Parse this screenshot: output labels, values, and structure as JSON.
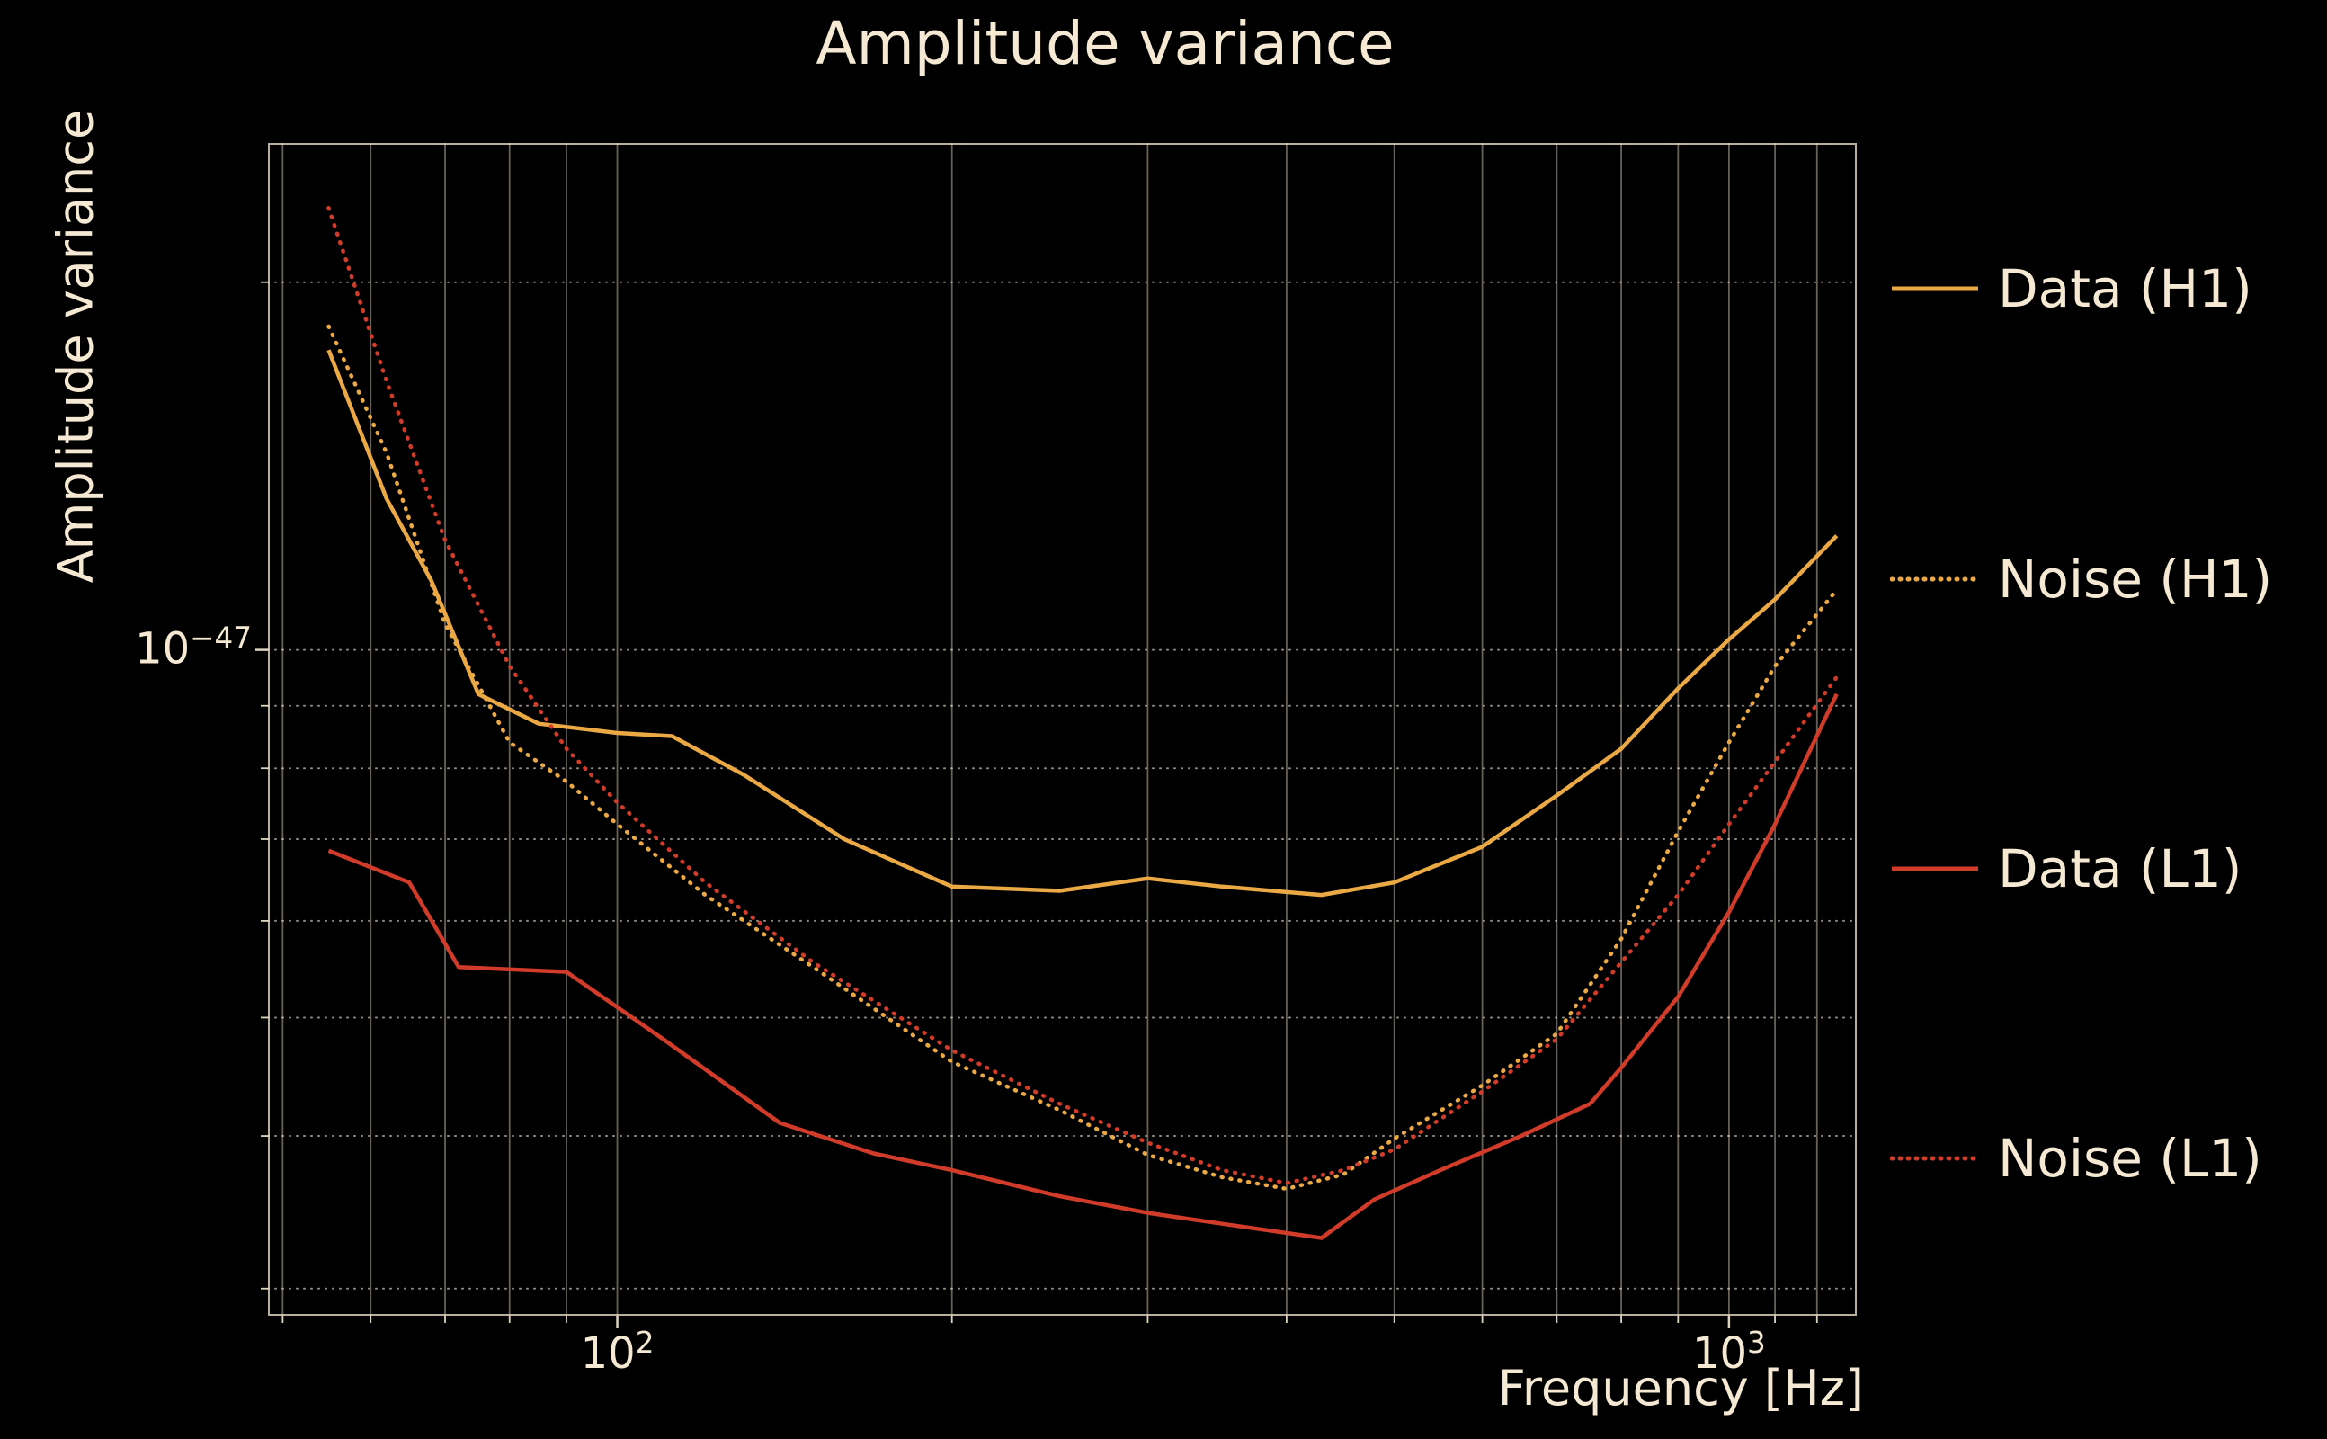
{
  "chart": {
    "title": "Amplitude variance",
    "xlabel": "Frequency [Hz]",
    "ylabel": "Amplitude variance",
    "colors": {
      "background": "#000000",
      "text": "#f5e9d3",
      "grid": "#f5e9d3",
      "gold": "#eaa945",
      "red": "#d13b2a"
    }
  },
  "chart_data": {
    "type": "line",
    "title": "Amplitude variance",
    "xlabel": "Frequency [Hz]",
    "ylabel": "Amplitude variance",
    "xscale": "log",
    "yscale": "log",
    "xlim": [
      48.5,
      1303
    ],
    "ylim": [
      2.85e-48,
      2.6e-47
    ],
    "legend_position": "right-outside",
    "grid": {
      "color": "#f5e9d3",
      "x": [
        50,
        60,
        70,
        80,
        90,
        100,
        200,
        300,
        400,
        500,
        600,
        700,
        800,
        900,
        1000,
        1100,
        1200
      ],
      "y": [
        2e-47,
        1e-47,
        9e-48,
        8e-48,
        7e-48,
        6e-48,
        5e-48,
        4e-48,
        3e-48
      ]
    },
    "xticks": [
      {
        "value": 100,
        "base": "10",
        "exp": "2"
      },
      {
        "value": 1000,
        "base": "10",
        "exp": "3"
      }
    ],
    "yticks": [
      {
        "value": 1e-47,
        "base": "10",
        "exp": "−47"
      }
    ],
    "series": [
      {
        "name": "Data (H1)",
        "color": "#eaa945",
        "style": "solid",
        "points": [
          [
            55,
            1.76e-47
          ],
          [
            62,
            1.33e-47
          ],
          [
            68,
            1.14e-47
          ],
          [
            75,
            9.2e-48
          ],
          [
            85,
            8.7e-48
          ],
          [
            100,
            8.55e-48
          ],
          [
            112,
            8.5e-48
          ],
          [
            130,
            7.9e-48
          ],
          [
            160,
            7e-48
          ],
          [
            200,
            6.4e-48
          ],
          [
            250,
            6.35e-48
          ],
          [
            300,
            6.5e-48
          ],
          [
            350,
            6.4e-48
          ],
          [
            430,
            6.3e-48
          ],
          [
            500,
            6.45e-48
          ],
          [
            600,
            6.9e-48
          ],
          [
            700,
            7.6e-48
          ],
          [
            800,
            8.3e-48
          ],
          [
            900,
            9.3e-48
          ],
          [
            1000,
            1.02e-47
          ],
          [
            1100,
            1.1e-47
          ],
          [
            1250,
            1.24e-47
          ]
        ]
      },
      {
        "name": "Noise (H1)",
        "color": "#eaa945",
        "style": "dotted",
        "points": [
          [
            55,
            1.84e-47
          ],
          [
            62,
            1.45e-47
          ],
          [
            70,
            1.05e-47
          ],
          [
            80,
            8.4e-48
          ],
          [
            90,
            7.8e-48
          ],
          [
            100,
            7.2e-48
          ],
          [
            120,
            6.3e-48
          ],
          [
            150,
            5.5e-48
          ],
          [
            200,
            4.6e-48
          ],
          [
            250,
            4.2e-48
          ],
          [
            300,
            3.86e-48
          ],
          [
            350,
            3.7e-48
          ],
          [
            400,
            3.62e-48
          ],
          [
            450,
            3.72e-48
          ],
          [
            500,
            3.98e-48
          ],
          [
            600,
            4.4e-48
          ],
          [
            700,
            4.85e-48
          ],
          [
            800,
            5.8e-48
          ],
          [
            900,
            7.1e-48
          ],
          [
            1000,
            8.4e-48
          ],
          [
            1100,
            9.7e-48
          ],
          [
            1250,
            1.12e-47
          ]
        ]
      },
      {
        "name": "Data (L1)",
        "color": "#d13b2a",
        "style": "solid",
        "points": [
          [
            55,
            6.85e-48
          ],
          [
            65,
            6.45e-48
          ],
          [
            72,
            5.5e-48
          ],
          [
            90,
            5.45e-48
          ],
          [
            110,
            4.8e-48
          ],
          [
            140,
            4.1e-48
          ],
          [
            170,
            3.87e-48
          ],
          [
            200,
            3.75e-48
          ],
          [
            250,
            3.57e-48
          ],
          [
            300,
            3.46e-48
          ],
          [
            350,
            3.39e-48
          ],
          [
            430,
            3.3e-48
          ],
          [
            480,
            3.55e-48
          ],
          [
            550,
            3.75e-48
          ],
          [
            650,
            4e-48
          ],
          [
            750,
            4.25e-48
          ],
          [
            800,
            4.55e-48
          ],
          [
            900,
            5.2e-48
          ],
          [
            1000,
            6.1e-48
          ],
          [
            1100,
            7.2e-48
          ],
          [
            1250,
            9.2e-48
          ]
        ]
      },
      {
        "name": "Noise (L1)",
        "color": "#d13b2a",
        "style": "dotted",
        "points": [
          [
            55,
            2.3e-47
          ],
          [
            62,
            1.66e-47
          ],
          [
            70,
            1.23e-47
          ],
          [
            80,
            9.7e-48
          ],
          [
            90,
            8.3e-48
          ],
          [
            100,
            7.5e-48
          ],
          [
            120,
            6.45e-48
          ],
          [
            150,
            5.55e-48
          ],
          [
            200,
            4.7e-48
          ],
          [
            250,
            4.25e-48
          ],
          [
            300,
            3.95e-48
          ],
          [
            350,
            3.75e-48
          ],
          [
            400,
            3.66e-48
          ],
          [
            450,
            3.75e-48
          ],
          [
            500,
            3.9e-48
          ],
          [
            600,
            4.35e-48
          ],
          [
            700,
            4.8e-48
          ],
          [
            800,
            5.55e-48
          ],
          [
            900,
            6.3e-48
          ],
          [
            1000,
            7.2e-48
          ],
          [
            1100,
            8.1e-48
          ],
          [
            1250,
            9.5e-48
          ]
        ]
      }
    ]
  },
  "legend": {
    "entries": [
      {
        "label": "Data (H1)"
      },
      {
        "label": "Noise (H1)"
      },
      {
        "label": "Data (L1)"
      },
      {
        "label": "Noise (L1)"
      }
    ]
  }
}
